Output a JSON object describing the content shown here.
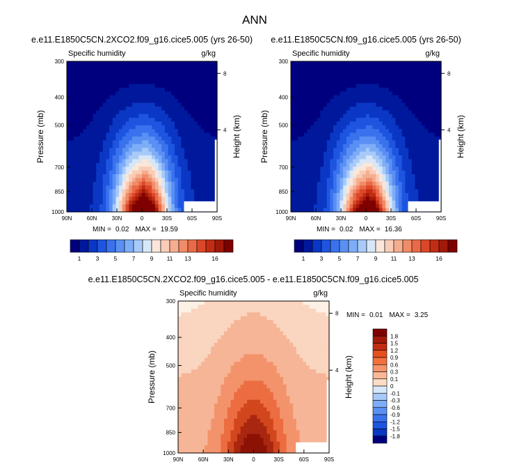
{
  "figure": {
    "title": "ANN"
  },
  "chart_data": [
    {
      "type": "heatmap",
      "title": "e.e11.E1850C5CN.2XCO2.f09_g16.cice5.005 (yrs 26-50)",
      "left_label": "Specific humidity",
      "right_label": "g/kg",
      "ylabel": "Pressure (mb)",
      "ylabel_right": "Height (km)",
      "x_ticks": [
        "90N",
        "60N",
        "30N",
        "0",
        "30S",
        "60S",
        "90S"
      ],
      "y_ticks": [
        "300",
        "400",
        "500",
        "700",
        "850",
        "1000"
      ],
      "height_ticks": [
        "8",
        "4"
      ],
      "min_label": "MIN =",
      "min": "0.02",
      "max_label": "MAX =",
      "max": "19.59",
      "colorbar_labels": [
        "1",
        "3",
        "5",
        "7",
        "9",
        "11",
        "13",
        "16"
      ],
      "peak_level": 16
    },
    {
      "type": "heatmap",
      "title": "e.e11.E1850C5CN.f09_g16.cice5.005 (yrs 26-50)",
      "left_label": "Specific humidity",
      "right_label": "g/kg",
      "ylabel": "Pressure (mb)",
      "ylabel_right": "Height (km)",
      "x_ticks": [
        "90N",
        "60N",
        "30N",
        "0",
        "30S",
        "60S",
        "90S"
      ],
      "y_ticks": [
        "300",
        "400",
        "500",
        "700",
        "850",
        "1000"
      ],
      "height_ticks": [
        "8",
        "4"
      ],
      "min_label": "MIN =",
      "min": "0.02",
      "max_label": "MAX =",
      "max": "16.36",
      "colorbar_labels": [
        "1",
        "3",
        "5",
        "7",
        "9",
        "11",
        "13",
        "16"
      ],
      "peak_level": 15
    },
    {
      "type": "heatmap",
      "title": "e.e11.E1850C5CN.2XCO2.f09_g16.cice5.005 - e.e11.E1850C5CN.f09_g16.cice5.005",
      "left_label": "Specific humidity",
      "right_label": "g/kg",
      "ylabel": "Pressure (mb)",
      "ylabel_right": "Height (km)",
      "x_ticks": [
        "90N",
        "60N",
        "30N",
        "0",
        "30S",
        "60S",
        "90S"
      ],
      "y_ticks": [
        "300",
        "400",
        "500",
        "700",
        "850",
        "1000"
      ],
      "height_ticks": [
        "8",
        "4"
      ],
      "min_label": "MIN =",
      "min": "0.01",
      "max_label": "MAX =",
      "max": "3.25",
      "colorbar_labels": [
        "1.8",
        "1.5",
        "1.2",
        "0.9",
        "0.6",
        "0.3",
        "0.1",
        "0",
        "-0.1",
        "-0.3",
        "-0.6",
        "-0.9",
        "-1.2",
        "-1.5",
        "-1.8"
      ]
    }
  ],
  "colors": {
    "abs_scale": [
      "#00007f",
      "#00189b",
      "#0a37c4",
      "#1e55e0",
      "#3a72ee",
      "#5a90f4",
      "#7eadf8",
      "#a8caf8",
      "#d6e7f8",
      "#fbe6da",
      "#f8ccb6",
      "#f5ad8f",
      "#f18c68",
      "#ea6947",
      "#da4829",
      "#c22c14",
      "#a31909",
      "#7f0000"
    ],
    "diff_scale": [
      "#7f0000",
      "#a31909",
      "#c22c14",
      "#e5501f",
      "#f3713d",
      "#f5946b",
      "#f8b898",
      "#fcdcc4",
      "#d6e7f8",
      "#a8caf8",
      "#7eadf8",
      "#5a90f4",
      "#3a72ee",
      "#1e55e0",
      "#0a37c4",
      "#00007f"
    ],
    "diff_levels": [
      "#fdf0e4",
      "#fad5bf",
      "#f6b596",
      "#f3936c",
      "#ec6d41",
      "#d2461e",
      "#a92710",
      "#8c1205"
    ]
  }
}
